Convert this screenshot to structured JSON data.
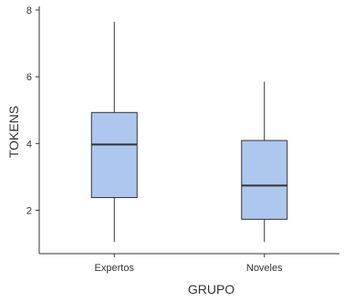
{
  "chart_data": {
    "type": "box",
    "xlabel": "GRUPO",
    "ylabel": "TOKENS",
    "ylim": [
      0.7,
      8
    ],
    "yticks": [
      2,
      4,
      6,
      8
    ],
    "categories": [
      "Expertos",
      "Noveles"
    ],
    "boxes": [
      {
        "category": "Expertos",
        "min": 1.05,
        "q1": 2.38,
        "median": 3.97,
        "q3": 4.93,
        "max": 7.65
      },
      {
        "category": "Noveles",
        "min": 1.05,
        "q1": 1.73,
        "median": 2.74,
        "q3": 4.09,
        "max": 5.85
      }
    ],
    "colors": {
      "box_fill": "#aec7ef",
      "stroke": "#333333"
    },
    "grid": false
  }
}
